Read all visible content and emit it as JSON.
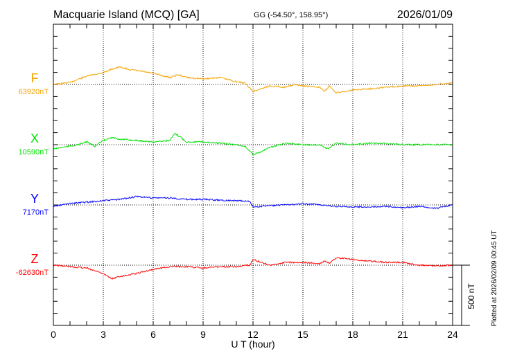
{
  "chart_data": {
    "type": "line",
    "title": "Macquarie Island (MCQ)  [GA]",
    "coords": "GG (-54.50°, 158.95°)",
    "date": "2026/01/09",
    "xlabel": "U T (hour)",
    "xlim": [
      0,
      24
    ],
    "xticks": [
      "0",
      "3",
      "6",
      "9",
      "12",
      "15",
      "18",
      "21",
      "24"
    ],
    "scale_label": "500 nT",
    "scale_nT": 500,
    "plotted_note": "Plotted at 2026/02/09 00:45 UT",
    "grid": true,
    "series": [
      {
        "name": "F",
        "baseline_label": "63920nT",
        "color": "#f5a300",
        "x": [
          0,
          1,
          2,
          3,
          3.5,
          4,
          4.5,
          5,
          6,
          7,
          7.5,
          8,
          9,
          10,
          11,
          11.5,
          12,
          12.5,
          13,
          14,
          14.5,
          15,
          16,
          16.3,
          16.6,
          17,
          17.5,
          18,
          19,
          20,
          21,
          22,
          23,
          24
        ],
        "values": [
          0,
          17,
          69,
          98,
          127,
          144,
          127,
          115,
          92,
          58,
          81,
          58,
          46,
          58,
          23,
          12,
          -58,
          -35,
          -12,
          -23,
          0,
          -12,
          -23,
          -58,
          -12,
          -69,
          -58,
          -46,
          -35,
          -23,
          -12,
          -12,
          0,
          12
        ]
      },
      {
        "name": "X",
        "baseline_label": "10590nT",
        "color": "#00e000",
        "x": [
          0,
          1,
          1.5,
          2,
          2.5,
          3,
          3.5,
          4,
          5,
          6,
          7,
          7.3,
          7.7,
          8,
          9,
          10,
          11,
          11.5,
          12,
          12.5,
          13,
          14,
          15,
          16,
          16.5,
          17,
          18,
          19,
          20,
          21,
          22,
          23,
          24
        ],
        "values": [
          -35,
          -12,
          0,
          23,
          -12,
          35,
          58,
          46,
          35,
          23,
          35,
          92,
          58,
          23,
          23,
          12,
          0,
          -12,
          -81,
          -58,
          -23,
          12,
          0,
          0,
          -35,
          12,
          0,
          12,
          12,
          0,
          0,
          0,
          0
        ]
      },
      {
        "name": "Y",
        "baseline_label": "7170nT",
        "color": "#0000ff",
        "x": [
          0,
          1,
          2,
          3,
          4,
          5,
          6,
          7,
          8,
          9,
          10,
          11,
          11.8,
          12,
          13,
          14,
          15,
          16,
          17,
          18,
          19,
          20,
          21,
          22,
          23,
          24
        ],
        "values": [
          -12,
          12,
          23,
          35,
          46,
          69,
          58,
          58,
          46,
          46,
          40,
          35,
          29,
          -17,
          -6,
          0,
          12,
          0,
          -12,
          -17,
          -17,
          -12,
          -23,
          -12,
          -29,
          0
        ]
      },
      {
        "name": "Z",
        "baseline_label": "-62630nT",
        "color": "#ff0000",
        "x": [
          0,
          1,
          2,
          3,
          3.5,
          4,
          5,
          6,
          7,
          8,
          9,
          10,
          11,
          11.8,
          12,
          12.5,
          13,
          14,
          15,
          16,
          16.3,
          16.6,
          17,
          17.5,
          18,
          19,
          20,
          21,
          22,
          23,
          24
        ],
        "values": [
          0,
          -12,
          -23,
          -69,
          -115,
          -92,
          -69,
          -35,
          -12,
          -12,
          -23,
          -12,
          -12,
          0,
          46,
          23,
          0,
          23,
          23,
          12,
          35,
          17,
          58,
          58,
          46,
          35,
          23,
          23,
          0,
          -6,
          0
        ]
      }
    ]
  }
}
